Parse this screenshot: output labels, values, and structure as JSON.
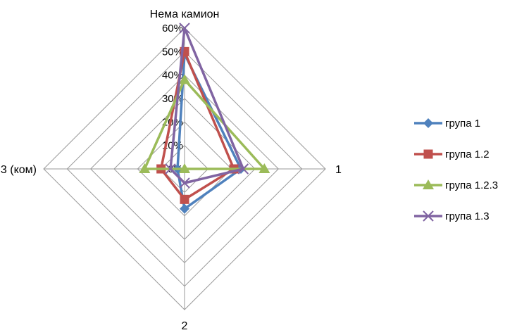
{
  "chart_data": {
    "type": "radar",
    "title": "",
    "categories": [
      "Нема камион",
      "1",
      "2",
      "3  (ком)"
    ],
    "r_ticks": [
      "0%",
      "10%",
      "20%",
      "30%",
      "40%",
      "50%",
      "60%"
    ],
    "r_max": 60,
    "grid": true,
    "legend_position": "right",
    "series": [
      {
        "name": "група 1",
        "values": [
          49,
          24,
          17,
          3
        ],
        "color": "#4F81BD",
        "marker": "diamond"
      },
      {
        "name": "група 1.2",
        "values": [
          50,
          21,
          13,
          10
        ],
        "color": "#C0504D",
        "marker": "square"
      },
      {
        "name": "група 1.2.3",
        "values": [
          38,
          34,
          0,
          17
        ],
        "color": "#9BBB59",
        "marker": "triangle"
      },
      {
        "name": "група 1.3",
        "values": [
          60,
          25,
          6,
          6
        ],
        "color": "#8064A2",
        "marker": "x"
      }
    ]
  }
}
